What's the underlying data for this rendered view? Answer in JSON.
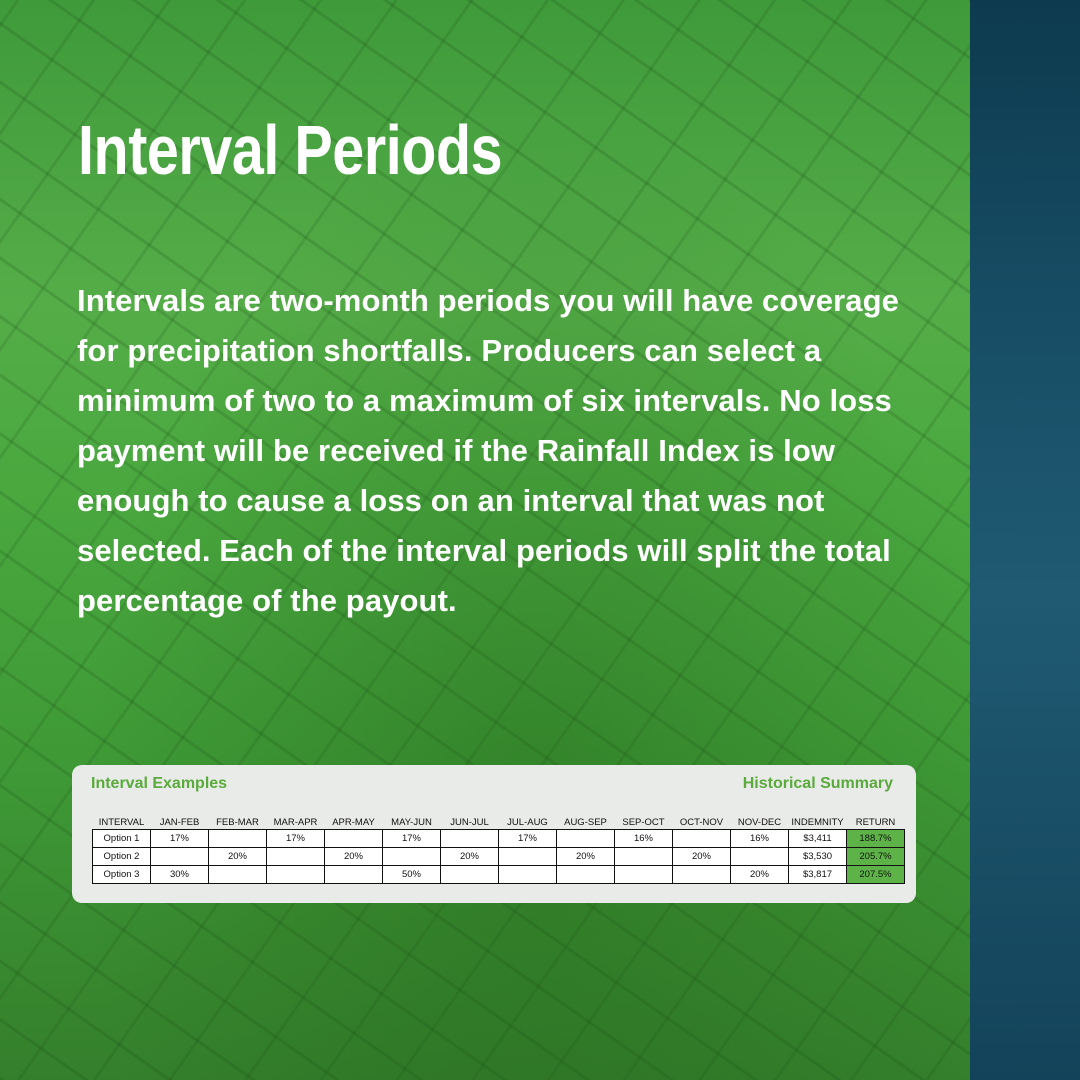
{
  "header": {
    "title": "Interval Periods"
  },
  "body": {
    "text": "Intervals are two-month periods you will have coverage for precipitation shortfalls. Producers can select a minimum of two to a maximum of six intervals. No loss payment will be received if the Rainfall Index is low enough to cause a loss on an interval that was not selected. Each of the interval periods will split the total percentage of the payout."
  },
  "table": {
    "left_heading": "Interval Examples",
    "right_heading": "Historical Summary",
    "columns": [
      "INTERVAL",
      "JAN-FEB",
      "FEB-MAR",
      "MAR-APR",
      "APR-MAY",
      "MAY-JUN",
      "JUN-JUL",
      "JUL-AUG",
      "AUG-SEP",
      "SEP-OCT",
      "OCT-NOV",
      "NOV-DEC",
      "INDEMNITY",
      "RETURN"
    ],
    "rows": [
      [
        "Option 1",
        "17%",
        null,
        "17%",
        null,
        "17%",
        null,
        "17%",
        null,
        "16%",
        null,
        "16%",
        "$3,411",
        "188.7%"
      ],
      [
        "Option 2",
        null,
        "20%",
        null,
        "20%",
        null,
        "20%",
        null,
        "20%",
        null,
        "20%",
        null,
        "$3,530",
        "205.7%"
      ],
      [
        "Option 3",
        "30%",
        null,
        null,
        null,
        "50%",
        null,
        null,
        null,
        null,
        null,
        "20%",
        "$3,817",
        "207.5%"
      ]
    ]
  }
}
